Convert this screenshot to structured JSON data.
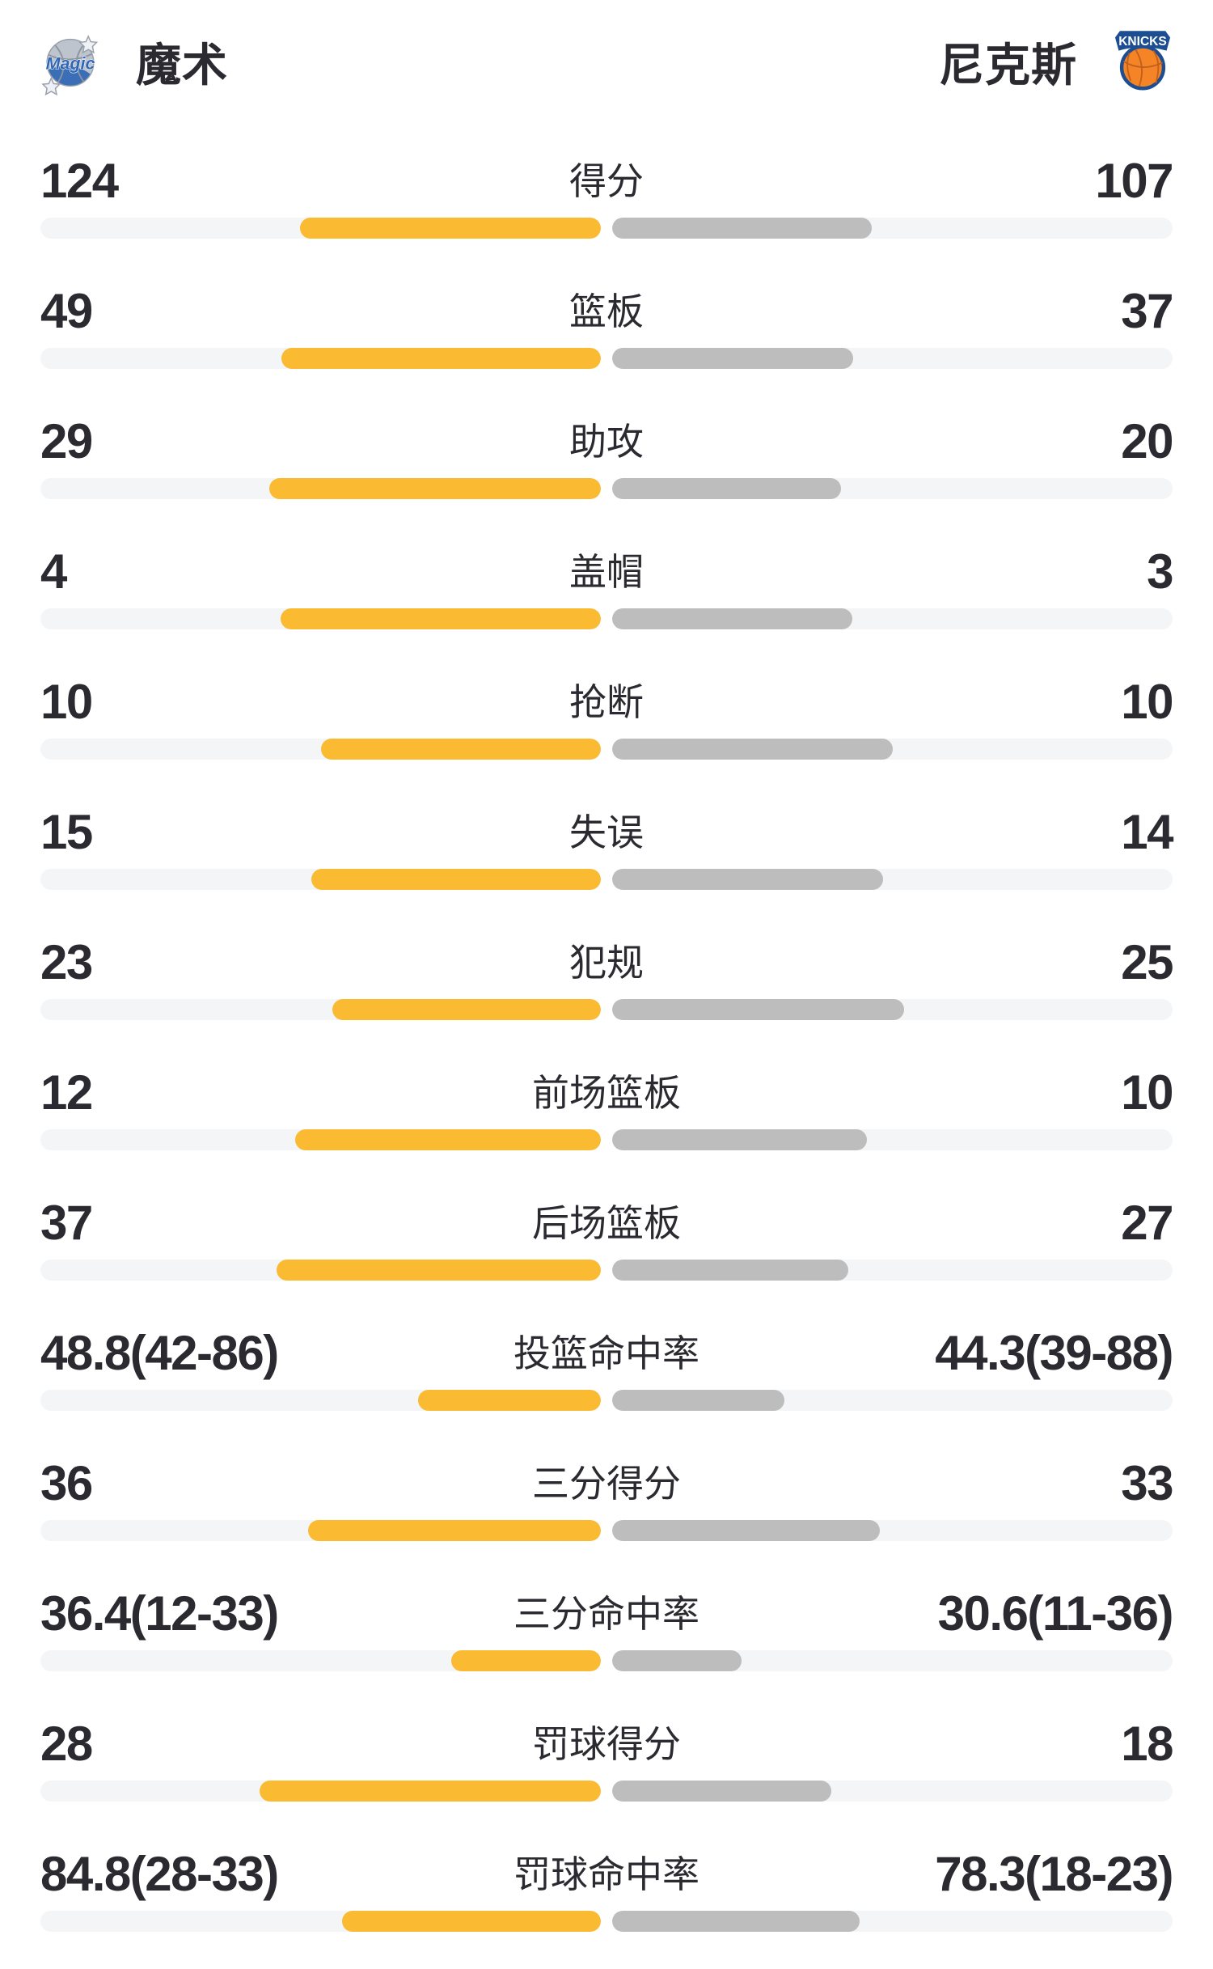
{
  "header": {
    "left_team": {
      "name": "魔术",
      "logo_text": "Magic"
    },
    "right_team": {
      "name": "尼克斯",
      "logo_text": "KNICKS"
    }
  },
  "colors": {
    "left_bar": "#FABB33",
    "right_bar": "#BDBDBD",
    "track": "#F4F5F7",
    "text": "#2A2A30",
    "magic_blue": "#3A6FB7",
    "knicks_orange": "#F58426",
    "knicks_blue": "#1D4E92"
  },
  "chart_data": {
    "type": "bar",
    "orientation": "horizontal-paired",
    "series": [
      "魔术",
      "尼克斯"
    ],
    "legend_position": "none",
    "bar_colors": {
      "left": "#FABB33",
      "right": "#BDBDBD"
    },
    "rows": [
      {
        "label": "得分",
        "left": "124",
        "right": "107",
        "left_num": 124,
        "right_num": 107,
        "left_fill": 53.7,
        "right_fill": 46.3
      },
      {
        "label": "篮板",
        "left": "49",
        "right": "37",
        "left_num": 49,
        "right_num": 37,
        "left_fill": 57.0,
        "right_fill": 43.0
      },
      {
        "label": "助攻",
        "left": "29",
        "right": "20",
        "left_num": 29,
        "right_num": 20,
        "left_fill": 59.2,
        "right_fill": 40.8
      },
      {
        "label": "盖帽",
        "left": "4",
        "right": "3",
        "left_num": 4,
        "right_num": 3,
        "left_fill": 57.1,
        "right_fill": 42.9
      },
      {
        "label": "抢断",
        "left": "10",
        "right": "10",
        "left_num": 10,
        "right_num": 10,
        "left_fill": 50.0,
        "right_fill": 50.0
      },
      {
        "label": "失误",
        "left": "15",
        "right": "14",
        "left_num": 15,
        "right_num": 14,
        "left_fill": 51.7,
        "right_fill": 48.3
      },
      {
        "label": "犯规",
        "left": "23",
        "right": "25",
        "left_num": 23,
        "right_num": 25,
        "left_fill": 47.9,
        "right_fill": 52.1
      },
      {
        "label": "前场篮板",
        "left": "12",
        "right": "10",
        "left_num": 12,
        "right_num": 10,
        "left_fill": 54.5,
        "right_fill": 45.5
      },
      {
        "label": "后场篮板",
        "left": "37",
        "right": "27",
        "left_num": 37,
        "right_num": 27,
        "left_fill": 57.8,
        "right_fill": 42.2
      },
      {
        "label": "投篮命中率",
        "left": "48.8(42-86)",
        "right": "44.3(39-88)",
        "left_num": 48.8,
        "right_num": 44.3,
        "left_made": 42,
        "left_att": 86,
        "right_made": 39,
        "right_att": 88,
        "left_fill": 32.6,
        "right_fill": 30.7
      },
      {
        "label": "三分得分",
        "left": "36",
        "right": "33",
        "left_num": 36,
        "right_num": 33,
        "left_fill": 52.2,
        "right_fill": 47.8
      },
      {
        "label": "三分命中率",
        "left": "36.4(12-33)",
        "right": "30.6(11-36)",
        "left_num": 36.4,
        "right_num": 30.6,
        "left_made": 12,
        "left_att": 33,
        "right_made": 11,
        "right_att": 36,
        "left_fill": 26.7,
        "right_fill": 23.1
      },
      {
        "label": "罚球得分",
        "left": "28",
        "right": "18",
        "left_num": 28,
        "right_num": 18,
        "left_fill": 60.9,
        "right_fill": 39.1
      },
      {
        "label": "罚球命中率",
        "left": "84.8(28-33)",
        "right": "78.3(18-23)",
        "left_num": 84.8,
        "right_num": 78.3,
        "left_made": 28,
        "left_att": 33,
        "right_made": 18,
        "right_att": 23,
        "left_fill": 46.2,
        "right_fill": 44.2
      }
    ]
  }
}
